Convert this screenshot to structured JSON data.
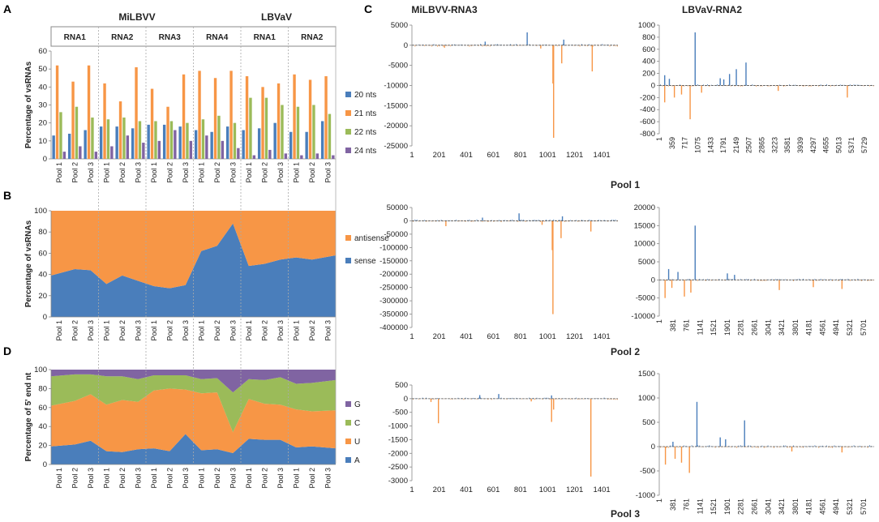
{
  "panel_letters": {
    "a": "A",
    "b": "B",
    "c": "C",
    "d": "D"
  },
  "colors": {
    "blue": "#4a7ebb",
    "orange": "#f79646",
    "green": "#9bbb59",
    "purple": "#8064a2",
    "axis": "#888888",
    "divider": "#aaaaaa"
  },
  "left_header": {
    "viruses": [
      "MiLBVV",
      "LBVaV"
    ],
    "rnas": [
      "RNA1",
      "RNA2",
      "RNA3",
      "RNA4",
      "RNA1",
      "RNA2"
    ],
    "pools": [
      "Pool 1",
      "Pool 2",
      "Pool 3"
    ]
  },
  "chart_data": [
    {
      "id": "A",
      "type": "bar",
      "ylabel": "Percentage of vsRNAs",
      "ylim": [
        0,
        60
      ],
      "yticks": [
        0,
        10,
        20,
        30,
        40,
        50,
        60
      ],
      "legend": [
        "20 nts",
        "21 nts",
        "22 nts",
        "24 nts"
      ],
      "groups": [
        "MiLBVV RNA1",
        "MiLBVV RNA2",
        "MiLBVV RNA3",
        "MiLBVV RNA4",
        "LBVaV RNA1",
        "LBVaV RNA2"
      ],
      "categories": [
        "Pool 1",
        "Pool 2",
        "Pool 3"
      ],
      "series": [
        {
          "name": "20 nts",
          "values": [
            [
              13,
              14,
              16
            ],
            [
              18,
              18,
              17
            ],
            [
              19,
              19,
              18
            ],
            [
              16,
              15,
              18
            ],
            [
              16,
              17,
              20
            ],
            [
              15,
              15,
              21
            ]
          ]
        },
        {
          "name": "21 nts",
          "values": [
            [
              52,
              43,
              52
            ],
            [
              42,
              32,
              51
            ],
            [
              39,
              29,
              47
            ],
            [
              49,
              45,
              49
            ],
            [
              46,
              40,
              42
            ],
            [
              47,
              44,
              46
            ]
          ]
        },
        {
          "name": "22 nts",
          "values": [
            [
              26,
              29,
              23
            ],
            [
              22,
              23,
              21
            ],
            [
              21,
              21,
              20
            ],
            [
              22,
              24,
              20
            ],
            [
              34,
              34,
              30
            ],
            [
              29,
              30,
              25
            ]
          ]
        },
        {
          "name": "24 nts",
          "values": [
            [
              4,
              7,
              4
            ],
            [
              7,
              13,
              9
            ],
            [
              10,
              16,
              10
            ],
            [
              13,
              10,
              6
            ],
            [
              2,
              5,
              3
            ],
            [
              2,
              3,
              2
            ]
          ]
        }
      ]
    },
    {
      "id": "B",
      "type": "area",
      "stacked": true,
      "ylabel": "Percentage of vsRNAs",
      "ylim": [
        0,
        100
      ],
      "yticks": [
        0,
        20,
        40,
        60,
        80,
        100
      ],
      "legend": [
        "antisense",
        "sense"
      ],
      "categories": [
        "Pool 1",
        "Pool 2",
        "Pool 3",
        "Pool 1",
        "Pool 2",
        "Pool 3",
        "Pool 1",
        "Pool 2",
        "Pool 3",
        "Pool 1",
        "Pool 2",
        "Pool 3",
        "Pool 1",
        "Pool 2",
        "Pool 3",
        "Pool 1",
        "Pool 2",
        "Pool 3"
      ],
      "series": [
        {
          "name": "sense",
          "values": [
            39,
            45,
            44,
            31,
            39,
            34,
            29,
            27,
            30,
            62,
            67,
            88,
            48,
            50,
            54,
            56,
            54,
            58
          ]
        },
        {
          "name": "antisense",
          "values": [
            61,
            55,
            56,
            69,
            61,
            66,
            71,
            73,
            70,
            38,
            33,
            12,
            52,
            50,
            46,
            44,
            46,
            42
          ]
        }
      ]
    },
    {
      "id": "D",
      "type": "area",
      "stacked": true,
      "ylabel": "Percentage of 5' end nt",
      "ylim": [
        0,
        100
      ],
      "yticks": [
        0,
        20,
        40,
        60,
        80,
        100
      ],
      "legend": [
        "G",
        "C",
        "U",
        "A"
      ],
      "categories": [
        "Pool 1",
        "Pool 2",
        "Pool 3",
        "Pool 1",
        "Pool 2",
        "Pool 3",
        "Pool 1",
        "Pool 2",
        "Pool 3",
        "Pool 1",
        "Pool 2",
        "Pool 3",
        "Pool 1",
        "Pool 2",
        "Pool 3",
        "Pool 1",
        "Pool 2",
        "Pool 3"
      ],
      "series": [
        {
          "name": "A",
          "values": [
            19,
            21,
            25,
            14,
            13,
            16,
            17,
            14,
            32,
            15,
            16,
            12,
            27,
            26,
            26,
            18,
            19,
            17
          ]
        },
        {
          "name": "U",
          "values": [
            43,
            46,
            49,
            49,
            55,
            50,
            61,
            66,
            47,
            60,
            60,
            22,
            42,
            38,
            37,
            40,
            37,
            40
          ]
        },
        {
          "name": "C",
          "values": [
            31,
            28,
            21,
            30,
            25,
            24,
            16,
            14,
            15,
            15,
            15,
            42,
            21,
            25,
            29,
            27,
            30,
            32
          ]
        },
        {
          "name": "G",
          "values": [
            7,
            5,
            5,
            7,
            7,
            10,
            6,
            6,
            6,
            10,
            9,
            24,
            10,
            11,
            8,
            15,
            14,
            11
          ]
        }
      ]
    },
    {
      "id": "C-MiLBVV-RNA3-Pool1",
      "type": "bar",
      "title": "MiLBVV-RNA3",
      "ylim": [
        -25000,
        5000
      ],
      "yticks": [
        5000,
        0,
        -5000,
        -10000,
        -15000,
        -20000,
        -25000
      ],
      "xlabels": [
        "1",
        "201",
        "401",
        "601",
        "801",
        "1001",
        "1201",
        "1401"
      ],
      "xmax": 1520,
      "peaks": [
        [
          850,
          3200
        ],
        [
          1120,
          1400
        ],
        [
          540,
          900
        ],
        [
          1045,
          -23000
        ],
        [
          1040,
          -9500
        ],
        [
          1105,
          -4500
        ],
        [
          1330,
          -6500
        ],
        [
          240,
          -600
        ],
        [
          950,
          -800
        ]
      ]
    },
    {
      "id": "C-LBVaV-RNA2-Pool1",
      "type": "bar",
      "title": "LBVaV-RNA2",
      "ylim": [
        -800,
        1000
      ],
      "yticks": [
        1000,
        800,
        600,
        400,
        200,
        0,
        -200,
        -400,
        -600,
        -800
      ],
      "xlabels": [
        "1",
        "359",
        "717",
        "1075",
        "1433",
        "1791",
        "2149",
        "2507",
        "2865",
        "3223",
        "3581",
        "3939",
        "4297",
        "4655",
        "5013",
        "5371",
        "5729"
      ],
      "xmax": 6000,
      "peaks": [
        [
          1000,
          880
        ],
        [
          2420,
          380
        ],
        [
          2150,
          270
        ],
        [
          1960,
          190
        ],
        [
          150,
          170
        ],
        [
          1700,
          120
        ],
        [
          1800,
          100
        ],
        [
          280,
          110
        ],
        [
          860,
          -560
        ],
        [
          150,
          -280
        ],
        [
          420,
          -200
        ],
        [
          620,
          -150
        ],
        [
          1180,
          -120
        ],
        [
          5250,
          -200
        ],
        [
          3320,
          -90
        ]
      ]
    },
    {
      "id": "C-MiLBVV-RNA3-Pool2",
      "type": "bar",
      "title": "",
      "ylim": [
        -400000,
        50000
      ],
      "yticks": [
        50000,
        0,
        -50000,
        -100000,
        -150000,
        -200000,
        -250000,
        -300000,
        -350000,
        -400000
      ],
      "xlabels": [
        "1",
        "201",
        "401",
        "601",
        "801",
        "1001",
        "1201",
        "1401"
      ],
      "xmax": 1520,
      "peaks": [
        [
          790,
          28000
        ],
        [
          1110,
          17000
        ],
        [
          520,
          12000
        ],
        [
          1040,
          -350000
        ],
        [
          1035,
          -110000
        ],
        [
          1100,
          -65000
        ],
        [
          1320,
          -40000
        ],
        [
          250,
          -20000
        ],
        [
          960,
          -15000
        ]
      ]
    },
    {
      "id": "C-LBVaV-RNA2-Pool2",
      "type": "bar",
      "title": "",
      "ylim": [
        -10000,
        20000
      ],
      "yticks": [
        20000,
        15000,
        10000,
        5000,
        0,
        -5000,
        -10000
      ],
      "xlabels": [
        "1",
        "381",
        "761",
        "1141",
        "1521",
        "1901",
        "2281",
        "2661",
        "3041",
        "3421",
        "3801",
        "4181",
        "4561",
        "4941",
        "5321",
        "5701"
      ],
      "xmax": 6000,
      "peaks": [
        [
          1000,
          15000
        ],
        [
          260,
          3000
        ],
        [
          520,
          2200
        ],
        [
          1900,
          1800
        ],
        [
          2100,
          1400
        ],
        [
          160,
          -5000
        ],
        [
          700,
          -4600
        ],
        [
          880,
          -3500
        ],
        [
          350,
          -2200
        ],
        [
          3350,
          -2800
        ],
        [
          4300,
          -2000
        ],
        [
          5100,
          -2500
        ]
      ]
    },
    {
      "id": "C-MiLBVV-RNA3-Pool3",
      "type": "bar",
      "title": "",
      "ylim": [
        -3000,
        500
      ],
      "yticks": [
        500,
        0,
        -500,
        -1000,
        -1500,
        -2000,
        -2500,
        -3000
      ],
      "xlabels": [
        "1",
        "201",
        "401",
        "601",
        "801",
        "1001",
        "1201",
        "1401"
      ],
      "xmax": 1520,
      "peaks": [
        [
          640,
          170
        ],
        [
          500,
          130
        ],
        [
          1030,
          120
        ],
        [
          1320,
          -2850
        ],
        [
          195,
          -900
        ],
        [
          1030,
          -850
        ],
        [
          1045,
          -400
        ],
        [
          140,
          -120
        ],
        [
          880,
          -100
        ]
      ]
    },
    {
      "id": "C-LBVaV-RNA2-Pool3",
      "type": "bar",
      "title": "",
      "ylim": [
        -1000,
        1500
      ],
      "yticks": [
        1500,
        1000,
        500,
        0,
        -500,
        -1000
      ],
      "xlabels": [
        "1",
        "381",
        "761",
        "1141",
        "1521",
        "1901",
        "2281",
        "2661",
        "3041",
        "3421",
        "3801",
        "4181",
        "4561",
        "4941",
        "5321",
        "5701"
      ],
      "xmax": 6000,
      "peaks": [
        [
          1050,
          920
        ],
        [
          2380,
          540
        ],
        [
          1700,
          190
        ],
        [
          1850,
          150
        ],
        [
          380,
          100
        ],
        [
          840,
          -540
        ],
        [
          170,
          -370
        ],
        [
          620,
          -330
        ],
        [
          440,
          -250
        ],
        [
          3700,
          -100
        ],
        [
          5100,
          -120
        ]
      ]
    }
  ],
  "pool_titles": [
    "Pool 1",
    "Pool 2",
    "Pool 3"
  ]
}
